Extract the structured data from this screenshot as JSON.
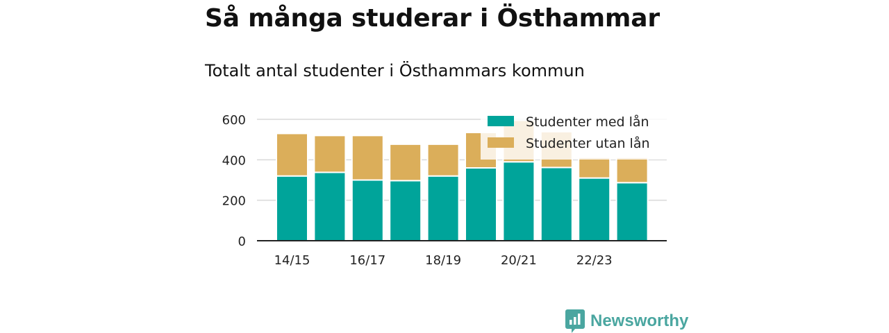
{
  "header": {
    "title": "Så många studerar i Östhammar",
    "subtitle": "Totalt antal studenter i Östhammars kommun"
  },
  "brand": {
    "name": "Newsworthy",
    "color": "#4aa6a0",
    "icon": "newsworthy-logo-icon"
  },
  "chart_data": {
    "type": "bar",
    "stacked": true,
    "x": [
      "14/15",
      "15/16",
      "16/17",
      "17/18",
      "18/19",
      "19/20",
      "20/21",
      "21/22",
      "22/23",
      "23/24"
    ],
    "tick_labels": [
      "14/15",
      "",
      "16/17",
      "",
      "18/19",
      "",
      "20/21",
      "",
      "22/23",
      ""
    ],
    "series": [
      {
        "name": "Studenter med lån",
        "color": "#00a49a",
        "values": [
          320,
          338,
          300,
          297,
          320,
          360,
          390,
          362,
          310,
          287
        ]
      },
      {
        "name": "Studenter utan lån",
        "color": "#dbae5a",
        "values": [
          210,
          182,
          220,
          180,
          157,
          175,
          205,
          177,
          102,
          125
        ]
      }
    ],
    "ylim": [
      0,
      600
    ],
    "yticks": [
      0,
      200,
      400,
      600
    ],
    "grid": true,
    "legend_position": "top-right",
    "title": "",
    "xlabel": "",
    "ylabel": ""
  }
}
